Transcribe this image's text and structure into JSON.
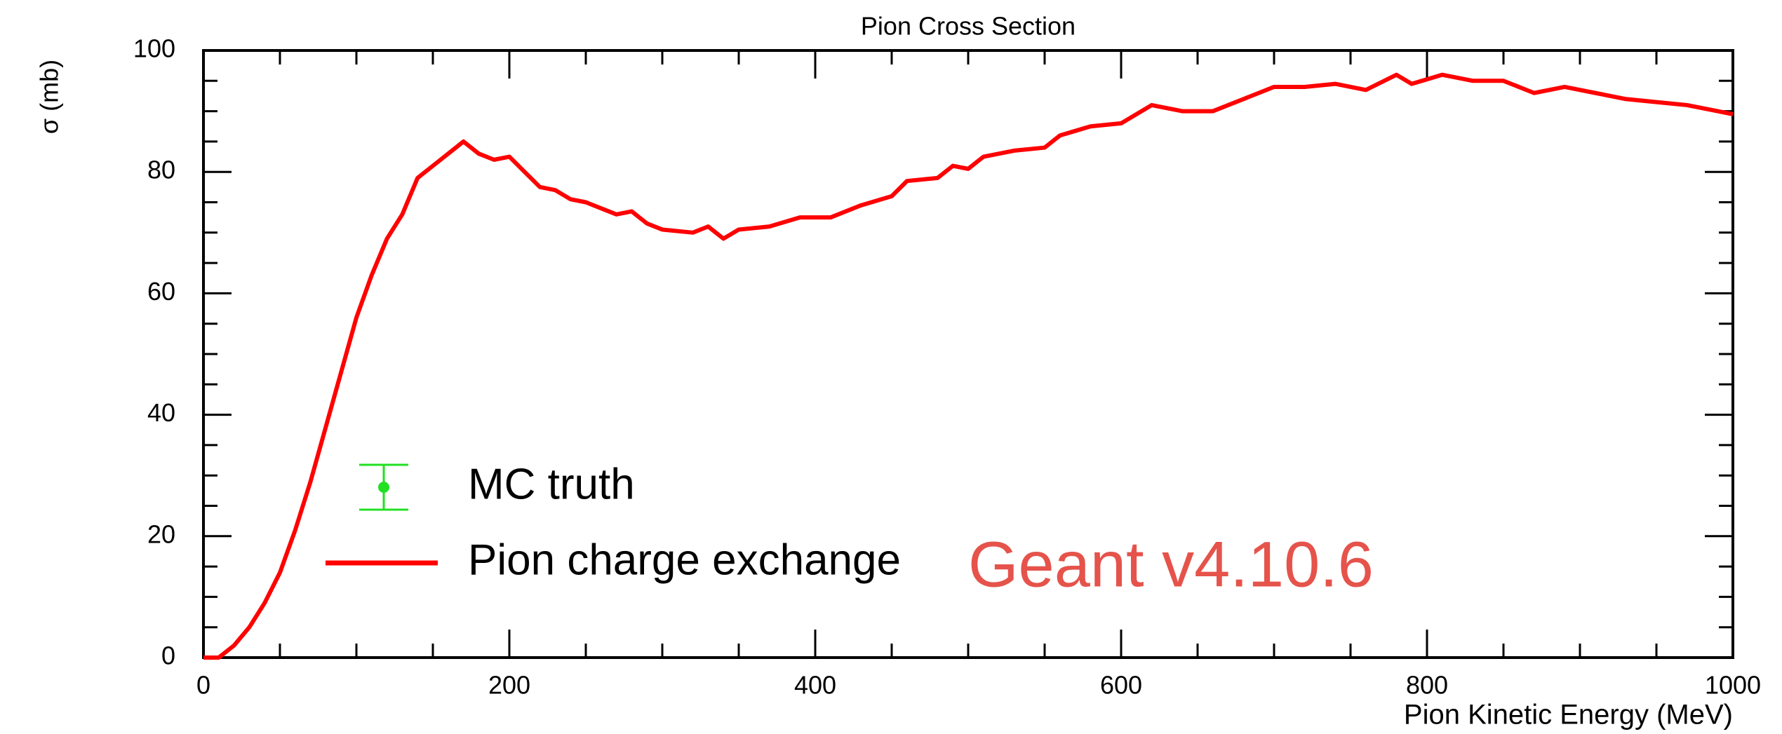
{
  "chart_data": {
    "type": "line",
    "title": "Pion Cross Section",
    "x_label": "Pion Kinetic Energy (MeV)",
    "y_label": "σ (mb)",
    "x": [
      0,
      10,
      20,
      30,
      40,
      50,
      60,
      70,
      80,
      90,
      100,
      110,
      120,
      130,
      140,
      150,
      160,
      170,
      180,
      190,
      200,
      210,
      220,
      230,
      240,
      250,
      260,
      270,
      280,
      290,
      300,
      320,
      330,
      340,
      350,
      370,
      390,
      410,
      430,
      450,
      460,
      480,
      490,
      500,
      510,
      530,
      550,
      560,
      580,
      600,
      620,
      640,
      660,
      680,
      700,
      720,
      740,
      760,
      780,
      790,
      810,
      830,
      850,
      870,
      890,
      910,
      930,
      950,
      970,
      990,
      1000
    ],
    "series": [
      {
        "name": "Pion charge exchange",
        "color": "#ff0000",
        "values": [
          0,
          0,
          2,
          5,
          9,
          14,
          21,
          29,
          38,
          47,
          56,
          63,
          69,
          73,
          79,
          81,
          83,
          85,
          83,
          82,
          82.5,
          80,
          77.5,
          77,
          75.5,
          75,
          74,
          73,
          73.5,
          71.5,
          70.5,
          70,
          71,
          69,
          70.5,
          71,
          72.5,
          72.5,
          74.5,
          76,
          78.5,
          79,
          81,
          80.5,
          82.5,
          83.5,
          84,
          86,
          87.5,
          88,
          91,
          90,
          90,
          92,
          94,
          94,
          94.5,
          93.5,
          96,
          94.5,
          96,
          95,
          95,
          93,
          94,
          93,
          92,
          91.5,
          91,
          90,
          89.5
        ]
      }
    ],
    "extra_legend": [
      {
        "name": "MC truth",
        "color": "#22e022"
      }
    ],
    "annotation": {
      "text": "Geant v4.10.6",
      "color": "#e5534b"
    },
    "xlim": [
      0,
      1000
    ],
    "xticks": [
      0,
      200,
      400,
      600,
      800,
      1000
    ],
    "xminor": 4,
    "ylim": [
      0,
      100
    ],
    "yticks": [
      0,
      20,
      40,
      60,
      80,
      100
    ],
    "yminor": 4
  }
}
